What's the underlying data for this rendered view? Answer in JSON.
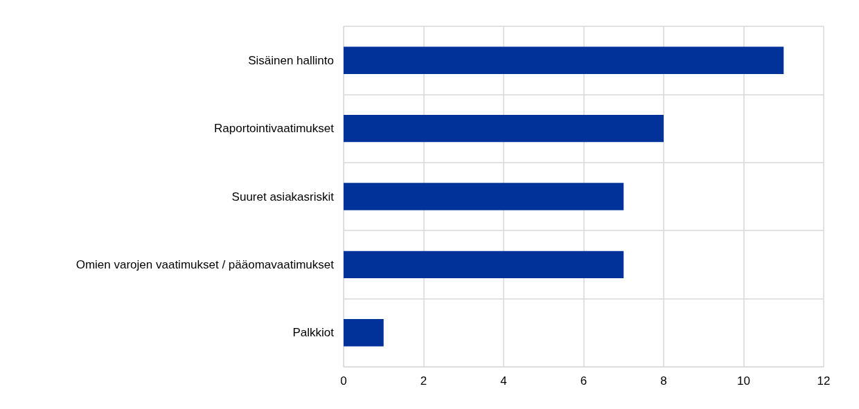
{
  "chart_data": {
    "type": "bar",
    "orientation": "horizontal",
    "categories": [
      "Sisäinen hallinto",
      "Raportointivaatimukset",
      "Suuret asiakasriskit",
      "Omien varojen vaatimukset / pääomavaatimukset",
      "Palkkiot"
    ],
    "values": [
      11,
      8,
      7,
      7,
      1
    ],
    "color": "#003299",
    "xlim": [
      0,
      12
    ],
    "xticks": [
      0,
      2,
      4,
      6,
      8,
      10,
      12
    ],
    "grid": true
  }
}
